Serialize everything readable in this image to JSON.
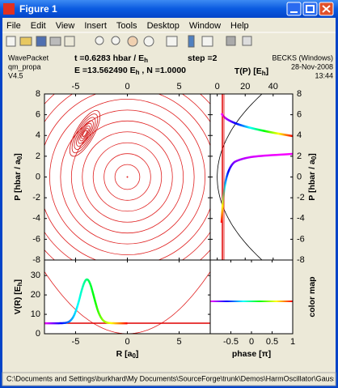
{
  "window": {
    "title": "Figure 1",
    "menu": [
      "File",
      "Edit",
      "View",
      "Insert",
      "Tools",
      "Desktop",
      "Window",
      "Help"
    ]
  },
  "header": {
    "program": [
      "WavePacket",
      "qm_propa",
      "V4.5"
    ],
    "time": [
      "t =0.6283 hbar / E",
      "h"
    ],
    "step": "step =2",
    "energy": [
      "E =13.562490 E",
      "h",
      " , N =1.0000"
    ],
    "host": [
      "BECKS (Windows)",
      "28-Nov-2008",
      "13:44"
    ]
  },
  "panels": [
    {
      "xlim": [
        -8,
        8
      ],
      "ylim": [
        -8,
        8
      ],
      "xticks": [
        -5,
        0,
        5
      ],
      "yticks": [
        -8,
        -6,
        -4,
        -2,
        0,
        2,
        4,
        6,
        8
      ],
      "ylabel": [
        "P [hbar / a",
        "0",
        "]"
      ]
    },
    {
      "xlim": [
        -5,
        54
      ],
      "ylim": [
        -8,
        8
      ],
      "xticks": [
        0,
        20,
        40
      ],
      "yticks": [
        -8,
        -6,
        -4,
        -2,
        0,
        2,
        4,
        6,
        8
      ],
      "xlabel": [
        "T(P) [E",
        "h",
        "]"
      ],
      "ylabel": [
        "P [hbar / a",
        "0",
        "]"
      ]
    },
    {
      "xlim": [
        -8,
        8
      ],
      "ylim": [
        0,
        38
      ],
      "xticks": [
        -5,
        0,
        5
      ],
      "yticks": [
        0,
        10,
        20,
        30
      ],
      "xlabel": [
        "R [a",
        "0",
        "]"
      ],
      "ylabel": [
        "V(R) [E",
        "h",
        "]"
      ]
    },
    {
      "xlim": [
        -1,
        1
      ],
      "ylim": [
        0,
        1
      ],
      "xticks": [
        -0.5,
        0,
        0.5,
        1
      ],
      "yticks": [],
      "xlabel": [
        "phase [π]"
      ],
      "ylabel": [
        "color map"
      ]
    }
  ],
  "status": "C:\\Documents and Settings\\burkhard\\My Documents\\SourceForge\\trunk\\Demos\\HarmOscillator\\Gaussian"
}
